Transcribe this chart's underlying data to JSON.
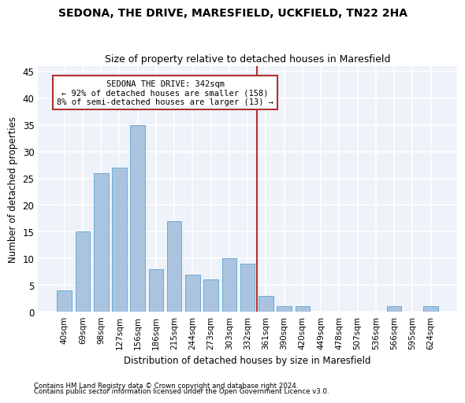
{
  "title": "SEDONA, THE DRIVE, MARESFIELD, UCKFIELD, TN22 2HA",
  "subtitle": "Size of property relative to detached houses in Maresfield",
  "xlabel": "Distribution of detached houses by size in Maresfield",
  "ylabel": "Number of detached properties",
  "bar_color": "#aac4e0",
  "bar_edge_color": "#6aaad4",
  "background_color": "#eef2f9",
  "grid_color": "#ffffff",
  "categories": [
    "40sqm",
    "69sqm",
    "98sqm",
    "127sqm",
    "156sqm",
    "186sqm",
    "215sqm",
    "244sqm",
    "273sqm",
    "303sqm",
    "332sqm",
    "361sqm",
    "390sqm",
    "420sqm",
    "449sqm",
    "478sqm",
    "507sqm",
    "536sqm",
    "566sqm",
    "595sqm",
    "624sqm"
  ],
  "values": [
    4,
    15,
    26,
    27,
    35,
    8,
    17,
    7,
    6,
    10,
    9,
    3,
    1,
    1,
    0,
    0,
    0,
    0,
    1,
    0,
    1
  ],
  "ylim": [
    0,
    46
  ],
  "yticks": [
    0,
    5,
    10,
    15,
    20,
    25,
    30,
    35,
    40,
    45
  ],
  "annotation_box_text": "SEDONA THE DRIVE: 342sqm\n← 92% of detached houses are smaller (158)\n8% of semi-detached houses are larger (13) →",
  "red_line_color": "#b03030",
  "footer_line1": "Contains HM Land Registry data © Crown copyright and database right 2024.",
  "footer_line2": "Contains public sector information licensed under the Open Government Licence v3.0."
}
